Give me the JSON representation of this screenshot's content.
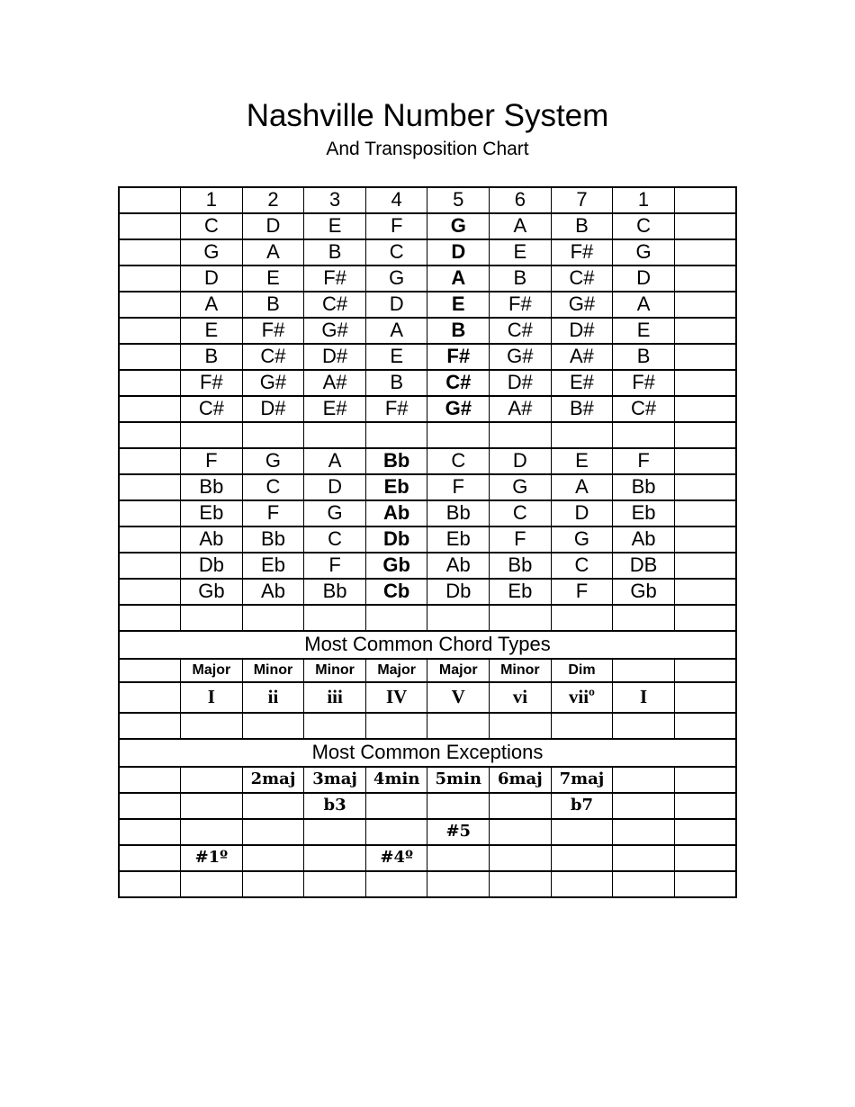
{
  "header": {
    "title": "Nashville Number System",
    "subtitle": "And Transposition Chart"
  },
  "colors": {
    "background": "#ffffff",
    "text": "#000000",
    "grid": "#000000"
  },
  "table": {
    "columns": 10,
    "rows": [
      {
        "style": "num",
        "cells": [
          "",
          "1",
          "2",
          "3",
          "4",
          "5",
          "6",
          "7",
          "1",
          ""
        ]
      },
      {
        "style": "note",
        "bold": 5,
        "cells": [
          "",
          "C",
          "D",
          "E",
          "F",
          "G",
          "A",
          "B",
          "C",
          ""
        ]
      },
      {
        "style": "note",
        "bold": 5,
        "cells": [
          "",
          "G",
          "A",
          "B",
          "C",
          "D",
          "E",
          "F#",
          "G",
          ""
        ]
      },
      {
        "style": "note",
        "bold": 5,
        "cells": [
          "",
          "D",
          "E",
          "F#",
          "G",
          "A",
          "B",
          "C#",
          "D",
          ""
        ]
      },
      {
        "style": "note",
        "bold": 5,
        "cells": [
          "",
          "A",
          "B",
          "C#",
          "D",
          "E",
          "F#",
          "G#",
          "A",
          ""
        ]
      },
      {
        "style": "note",
        "bold": 5,
        "cells": [
          "",
          "E",
          "F#",
          "G#",
          "A",
          "B",
          "C#",
          "D#",
          "E",
          ""
        ]
      },
      {
        "style": "note",
        "bold": 5,
        "cells": [
          "",
          "B",
          "C#",
          "D#",
          "E",
          "F#",
          "G#",
          "A#",
          "B",
          ""
        ]
      },
      {
        "style": "note",
        "bold": 5,
        "cells": [
          "",
          "F#",
          "G#",
          "A#",
          "B",
          "C#",
          "D#",
          "E#",
          "F#",
          ""
        ]
      },
      {
        "style": "note",
        "bold": 5,
        "cells": [
          "",
          "C#",
          "D#",
          "E#",
          "F#",
          "G#",
          "A#",
          "B#",
          "C#",
          ""
        ]
      },
      {
        "style": "empty"
      },
      {
        "style": "note",
        "bold": 4,
        "cells": [
          "",
          "F",
          "G",
          "A",
          "Bb",
          "C",
          "D",
          "E",
          "F",
          ""
        ]
      },
      {
        "style": "note",
        "bold": 4,
        "cells": [
          "",
          "Bb",
          "C",
          "D",
          "Eb",
          "F",
          "G",
          "A",
          "Bb",
          ""
        ]
      },
      {
        "style": "note",
        "bold": 4,
        "cells": [
          "",
          "Eb",
          "F",
          "G",
          "Ab",
          "Bb",
          "C",
          "D",
          "Eb",
          ""
        ]
      },
      {
        "style": "note",
        "bold": 4,
        "cells": [
          "",
          "Ab",
          "Bb",
          "C",
          "Db",
          "Eb",
          "F",
          "G",
          "Ab",
          ""
        ]
      },
      {
        "style": "note",
        "bold": 4,
        "cells": [
          "",
          "Db",
          "Eb",
          "F",
          "Gb",
          "Ab",
          "Bb",
          "C",
          "DB",
          ""
        ]
      },
      {
        "style": "note",
        "bold": 4,
        "cells": [
          "",
          "Gb",
          "Ab",
          "Bb",
          "Cb",
          "Db",
          "Eb",
          "F",
          "Gb",
          ""
        ]
      },
      {
        "style": "empty"
      },
      {
        "style": "title",
        "merged": true,
        "text": "Most Common Chord Types"
      },
      {
        "style": "label",
        "cells": [
          "",
          "Major",
          "Minor",
          "Minor",
          "Major",
          "Major",
          "Minor",
          "Dim",
          "",
          ""
        ]
      },
      {
        "style": "roman",
        "cells": [
          "",
          "I",
          "ii",
          "iii",
          "IV",
          "V",
          "vi",
          "viiº",
          "I",
          ""
        ]
      },
      {
        "style": "empty"
      },
      {
        "style": "title",
        "merged": true,
        "text": "Most Common Exceptions"
      },
      {
        "style": "except",
        "cells": [
          "",
          "",
          "2maj",
          "3maj",
          "4min",
          "5min",
          "6maj",
          "7maj",
          "",
          ""
        ]
      },
      {
        "style": "except",
        "cells": [
          "",
          "",
          "",
          "b3",
          "",
          "",
          "",
          "b7",
          "",
          ""
        ]
      },
      {
        "style": "except",
        "cells": [
          "",
          "",
          "",
          "",
          "",
          "#5",
          "",
          "",
          "",
          ""
        ]
      },
      {
        "style": "except",
        "cells": [
          "",
          "#1º",
          "",
          "",
          "#4º",
          "",
          "",
          "",
          "",
          ""
        ]
      },
      {
        "style": "empty"
      }
    ]
  }
}
